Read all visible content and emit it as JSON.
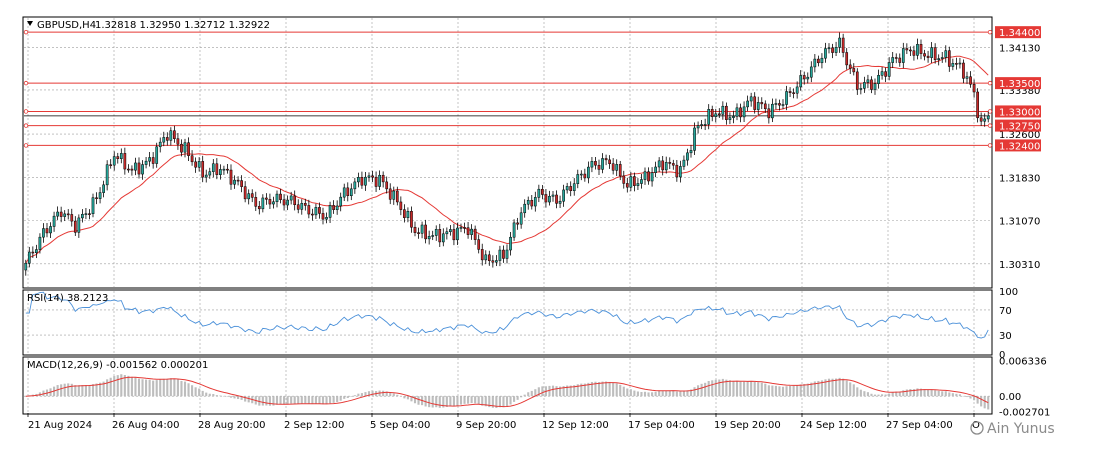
{
  "header": {
    "symbol": "GBPUSD,H4",
    "ohlc": "1.32818 1.32950 1.32712 1.32922"
  },
  "watermark": "Ain Yunus",
  "colors": {
    "bull": "#26a69a",
    "bear": "#c62828",
    "ma": "#e53935",
    "rsi": "#4a90d9",
    "level": "#e53935",
    "grid": "#9e9e9e",
    "macd_hist": "#bdbdbd",
    "macd_signal": "#e53935"
  },
  "chart_data": [
    {
      "type": "candlestick",
      "name": "GBPUSD,H4",
      "ylim": [
        1.299,
        1.3465
      ],
      "y_ticks": [
        1.3031,
        1.3107,
        1.3183,
        1.326,
        1.3338,
        1.3413
      ],
      "y_tick_labels": [
        "1.30310",
        "1.31070",
        "1.31830",
        "1.32600",
        "1.33380",
        "1.34130"
      ],
      "x_labels": [
        "21 Aug 2024",
        "26 Aug 04:00",
        "28 Aug 20:00",
        "2 Sep 12:00",
        "5 Sep 04:00",
        "9 Sep 20:00",
        "12 Sep 12:00",
        "17 Sep 04:00",
        "19 Sep 20:00",
        "24 Sep 12:00",
        "27 Sep 04:00",
        "O"
      ],
      "levels": [
        {
          "value": 1.344,
          "label": "1.34400",
          "kind": "resistance"
        },
        {
          "value": 1.335,
          "label": "1.33500",
          "kind": "resistance"
        },
        {
          "value": 1.33,
          "label": "1.33000",
          "kind": "resistance"
        },
        {
          "value": 1.3275,
          "label": "1.32750",
          "kind": "pivot"
        },
        {
          "value": 1.324,
          "label": "1.32400",
          "kind": "support"
        }
      ],
      "current_price": 1.32922,
      "close_anchors": [
        [
          0,
          1.3032
        ],
        [
          5,
          1.3085
        ],
        [
          10,
          1.3125
        ],
        [
          14,
          1.3098
        ],
        [
          20,
          1.3145
        ],
        [
          25,
          1.3225
        ],
        [
          30,
          1.3195
        ],
        [
          35,
          1.3212
        ],
        [
          40,
          1.3262
        ],
        [
          45,
          1.3232
        ],
        [
          50,
          1.319
        ],
        [
          55,
          1.32
        ],
        [
          60,
          1.3172
        ],
        [
          65,
          1.3135
        ],
        [
          70,
          1.3145
        ],
        [
          75,
          1.3142
        ],
        [
          80,
          1.3125
        ],
        [
          85,
          1.3115
        ],
        [
          90,
          1.3155
        ],
        [
          95,
          1.3182
        ],
        [
          100,
          1.318
        ],
        [
          105,
          1.314
        ],
        [
          110,
          1.309
        ],
        [
          115,
          1.308
        ],
        [
          120,
          1.3085
        ],
        [
          125,
          1.3095
        ],
        [
          130,
          1.3035
        ],
        [
          135,
          1.3045
        ],
        [
          140,
          1.3125
        ],
        [
          145,
          1.3155
        ],
        [
          150,
          1.3142
        ],
        [
          155,
          1.3175
        ],
        [
          160,
          1.3205
        ],
        [
          165,
          1.3212
        ],
        [
          170,
          1.317
        ],
        [
          175,
          1.3182
        ],
        [
          180,
          1.321
        ],
        [
          185,
          1.3195
        ],
        [
          190,
          1.3275
        ],
        [
          195,
          1.33
        ],
        [
          200,
          1.329
        ],
        [
          205,
          1.332
        ],
        [
          210,
          1.33
        ],
        [
          215,
          1.3325
        ],
        [
          220,
          1.336
        ],
        [
          225,
          1.34
        ],
        [
          230,
          1.342
        ],
        [
          235,
          1.3345
        ],
        [
          240,
          1.335
        ],
        [
          245,
          1.339
        ],
        [
          250,
          1.341
        ],
        [
          255,
          1.34
        ],
        [
          260,
          1.3395
        ],
        [
          265,
          1.3372
        ],
        [
          268,
          1.333
        ],
        [
          270,
          1.3275
        ],
        [
          272,
          1.3292
        ]
      ],
      "ma_period": 20
    },
    {
      "type": "line",
      "name": "RSI(14) 38.2123",
      "label": "RSI(14) 38.2123",
      "ylim": [
        0,
        100
      ],
      "y_ticks": [
        0,
        30,
        70,
        100
      ],
      "y_tick_labels": [
        "0",
        "30",
        "70",
        "100"
      ],
      "last_value": 38.2123
    },
    {
      "type": "bar",
      "name": "MACD(12,26,9) -0.001562 0.000201",
      "label": "MACD(12,26,9) -0.001562 0.000201",
      "ylim": [
        -0.003,
        0.0068
      ],
      "y_ticks": [
        -0.002701,
        0.0,
        0.006336
      ],
      "y_tick_labels": [
        "-0.002701",
        "0.00",
        "0.006336"
      ],
      "macd_last": -0.001562,
      "signal_last": 0.000201
    }
  ]
}
